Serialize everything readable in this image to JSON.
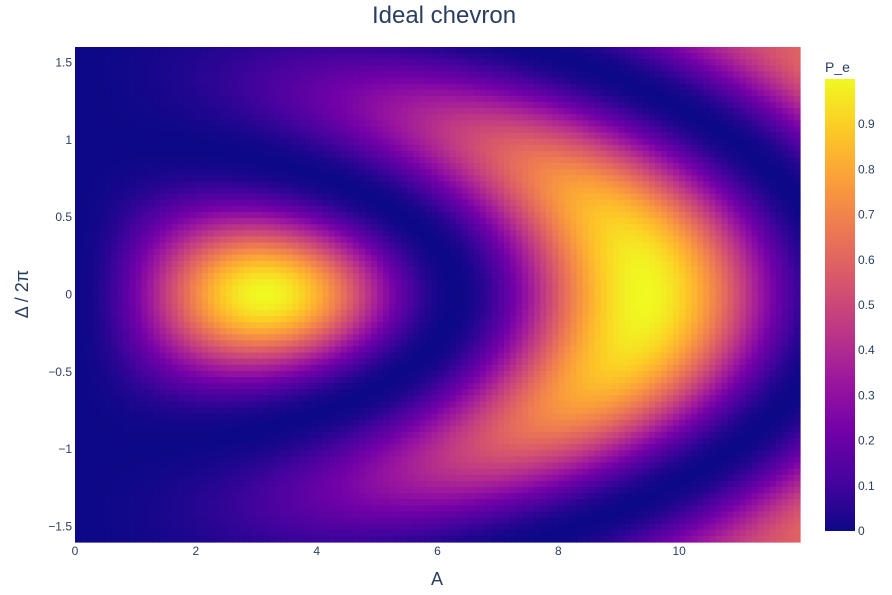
{
  "chart_data": {
    "type": "heatmap",
    "title": "Ideal chevron",
    "xlabel": "A",
    "ylabel": "Δ / 2π",
    "xlim": [
      0,
      12
    ],
    "ylim": [
      -1.6,
      1.6
    ],
    "x_ticks": [
      {
        "value": 0,
        "label": "0"
      },
      {
        "value": 2,
        "label": "2"
      },
      {
        "value": 4,
        "label": "4"
      },
      {
        "value": 6,
        "label": "6"
      },
      {
        "value": 8,
        "label": "8"
      },
      {
        "value": 10,
        "label": "10"
      }
    ],
    "y_ticks": [
      {
        "value": 1.5,
        "label": "1.5"
      },
      {
        "value": 1,
        "label": "1"
      },
      {
        "value": 0.5,
        "label": "0.5"
      },
      {
        "value": 0,
        "label": "0"
      },
      {
        "value": -0.5,
        "label": "−0.5"
      },
      {
        "value": -1,
        "label": "−1"
      },
      {
        "value": -1.5,
        "label": "−1.5"
      }
    ],
    "z_function": "P_e = A^2 / (A^2 + (2πΔ/2π)^2) * sin^2( sqrt(A^2 + (2π·Δ/2π)^2) / 2 )",
    "colorbar": {
      "title": "P_e",
      "zlim": [
        0,
        1
      ],
      "ticks": [
        {
          "value": 0,
          "label": "0"
        },
        {
          "value": 0.1,
          "label": "0.1"
        },
        {
          "value": 0.2,
          "label": "0.2"
        },
        {
          "value": 0.3,
          "label": "0.3"
        },
        {
          "value": 0.4,
          "label": "0.4"
        },
        {
          "value": 0.5,
          "label": "0.5"
        },
        {
          "value": 0.6,
          "label": "0.6"
        },
        {
          "value": 0.7,
          "label": "0.7"
        },
        {
          "value": 0.8,
          "label": "0.8"
        },
        {
          "value": 0.9,
          "label": "0.9"
        }
      ]
    },
    "colorscale": "plasma",
    "colorscale_stops": [
      [
        0.0,
        "#0d0887"
      ],
      [
        0.1111,
        "#46039f"
      ],
      [
        0.2222,
        "#7201a8"
      ],
      [
        0.3333,
        "#9c179e"
      ],
      [
        0.4444,
        "#bd3786"
      ],
      [
        0.5556,
        "#d8576b"
      ],
      [
        0.6667,
        "#ed7953"
      ],
      [
        0.7778,
        "#fb9f3a"
      ],
      [
        0.8889,
        "#fdca26"
      ],
      [
        1.0,
        "#f0f921"
      ]
    ]
  }
}
